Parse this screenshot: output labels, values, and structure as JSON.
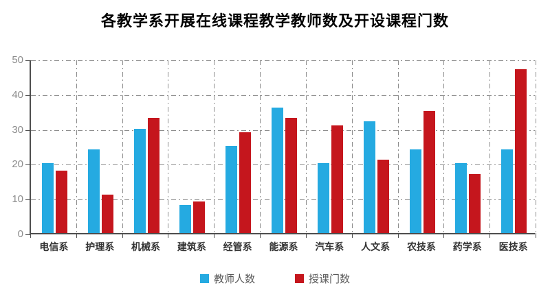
{
  "chart_data": {
    "type": "bar",
    "title": "各教学系开展在线课程教学教师数及开设课程门数",
    "categories": [
      "电信系",
      "护理系",
      "机械系",
      "建筑系",
      "经管系",
      "能源系",
      "汽车系",
      "人文系",
      "农技系",
      "药学系",
      "医技系"
    ],
    "series": [
      {
        "name": "教师人数",
        "color": "#25AAE1",
        "values": [
          20,
          24,
          30,
          8,
          25,
          36,
          20,
          32,
          24,
          20,
          24
        ]
      },
      {
        "name": "授课门数",
        "color": "#C5161D",
        "values": [
          18,
          11,
          33,
          9,
          29,
          33,
          31,
          21,
          35,
          17,
          47
        ]
      }
    ],
    "xlabel": "",
    "ylabel": "",
    "ylim": [
      0,
      50
    ],
    "ytick_interval": 10,
    "yticks": [
      "0",
      "10",
      "20",
      "30",
      "40",
      "50"
    ],
    "grid": true,
    "legend_position": "bottom"
  }
}
